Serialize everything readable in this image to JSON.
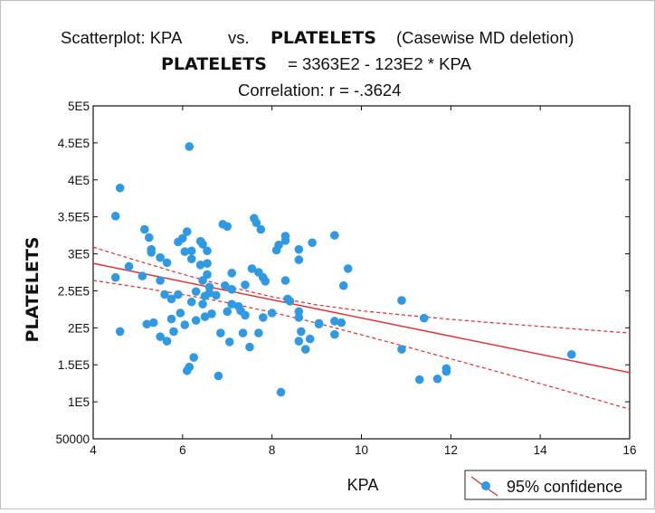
{
  "chart_data": {
    "type": "scatter",
    "title": {
      "prefix": "Scatterplot: KPA",
      "vs": "vs.",
      "yvar": "PLATELETS",
      "suffix": "(Casewise MD deletion)",
      "equation": "= 3363E2 - 123E2  * KPA",
      "correlation": "Correlation: r = -.3624"
    },
    "xlabel": "KPA",
    "ylabel": "PLATELETS",
    "xlim": [
      4,
      16
    ],
    "ylim": [
      50000,
      500000
    ],
    "xticks": [
      4,
      6,
      8,
      10,
      12,
      14,
      16
    ],
    "xtick_labels": [
      "4",
      "6",
      "8",
      "10",
      "12",
      "14",
      "16"
    ],
    "yticks": [
      50000,
      100000,
      150000,
      200000,
      250000,
      300000,
      350000,
      400000,
      450000,
      500000
    ],
    "ytick_labels": [
      "50000",
      "1E5",
      "1.5E5",
      "2E5",
      "2.5E5",
      "3E5",
      "3.5E5",
      "4E5",
      "4.5E5",
      "5E5"
    ],
    "grid": false,
    "legend": {
      "position": "bottom-right",
      "label": "95% confidence"
    },
    "regression": {
      "intercept": 336300,
      "slope": -12300
    },
    "confidence_band": {
      "x": [
        4,
        5,
        6,
        7,
        8,
        9,
        10,
        11,
        12,
        13,
        14,
        15,
        16
      ],
      "upper": [
        309000,
        290500,
        272500,
        256000,
        242000,
        231000,
        223000,
        217000,
        211500,
        206500,
        202000,
        197500,
        193000
      ],
      "lower": [
        264000,
        255000,
        245000,
        234000,
        221000,
        206500,
        190500,
        174500,
        158000,
        141500,
        124500,
        107500,
        90000
      ]
    },
    "points": [
      {
        "x": 4.5,
        "y": 351000
      },
      {
        "x": 4.6,
        "y": 389000
      },
      {
        "x": 4.5,
        "y": 268000
      },
      {
        "x": 4.6,
        "y": 195000
      },
      {
        "x": 4.8,
        "y": 283000
      },
      {
        "x": 5.1,
        "y": 270000
      },
      {
        "x": 5.15,
        "y": 333000
      },
      {
        "x": 5.25,
        "y": 322000
      },
      {
        "x": 5.3,
        "y": 306000
      },
      {
        "x": 5.3,
        "y": 302000
      },
      {
        "x": 5.2,
        "y": 205000
      },
      {
        "x": 5.35,
        "y": 207000
      },
      {
        "x": 5.5,
        "y": 295000
      },
      {
        "x": 5.5,
        "y": 264000
      },
      {
        "x": 5.5,
        "y": 188000
      },
      {
        "x": 5.65,
        "y": 288000
      },
      {
        "x": 5.6,
        "y": 245000
      },
      {
        "x": 5.65,
        "y": 182000
      },
      {
        "x": 5.75,
        "y": 239000
      },
      {
        "x": 5.75,
        "y": 212000
      },
      {
        "x": 5.8,
        "y": 195000
      },
      {
        "x": 5.9,
        "y": 316000
      },
      {
        "x": 5.9,
        "y": 245000
      },
      {
        "x": 5.95,
        "y": 220000
      },
      {
        "x": 6.0,
        "y": 321000
      },
      {
        "x": 6.05,
        "y": 303000
      },
      {
        "x": 6.1,
        "y": 330000
      },
      {
        "x": 6.05,
        "y": 204000
      },
      {
        "x": 6.1,
        "y": 142000
      },
      {
        "x": 6.15,
        "y": 147000
      },
      {
        "x": 6.15,
        "y": 445000
      },
      {
        "x": 6.2,
        "y": 304000
      },
      {
        "x": 6.2,
        "y": 293000
      },
      {
        "x": 6.2,
        "y": 235000
      },
      {
        "x": 6.25,
        "y": 160000
      },
      {
        "x": 6.3,
        "y": 249000
      },
      {
        "x": 6.3,
        "y": 210000
      },
      {
        "x": 6.4,
        "y": 317000
      },
      {
        "x": 6.4,
        "y": 285000
      },
      {
        "x": 6.45,
        "y": 313000
      },
      {
        "x": 6.45,
        "y": 264000
      },
      {
        "x": 6.45,
        "y": 232000
      },
      {
        "x": 6.5,
        "y": 243000
      },
      {
        "x": 6.5,
        "y": 215000
      },
      {
        "x": 6.55,
        "y": 304000
      },
      {
        "x": 6.55,
        "y": 287000
      },
      {
        "x": 6.55,
        "y": 272000
      },
      {
        "x": 6.6,
        "y": 255000
      },
      {
        "x": 6.6,
        "y": 247000
      },
      {
        "x": 6.65,
        "y": 219000
      },
      {
        "x": 6.75,
        "y": 244000
      },
      {
        "x": 6.8,
        "y": 135000
      },
      {
        "x": 6.85,
        "y": 193000
      },
      {
        "x": 6.9,
        "y": 340000
      },
      {
        "x": 6.95,
        "y": 257000
      },
      {
        "x": 7.0,
        "y": 337000
      },
      {
        "x": 7.0,
        "y": 222000
      },
      {
        "x": 7.05,
        "y": 181000
      },
      {
        "x": 7.1,
        "y": 274000
      },
      {
        "x": 7.1,
        "y": 252000
      },
      {
        "x": 7.1,
        "y": 232000
      },
      {
        "x": 7.25,
        "y": 229000
      },
      {
        "x": 7.3,
        "y": 223000
      },
      {
        "x": 7.35,
        "y": 193000
      },
      {
        "x": 7.4,
        "y": 258000
      },
      {
        "x": 7.4,
        "y": 217000
      },
      {
        "x": 7.5,
        "y": 174000
      },
      {
        "x": 7.55,
        "y": 280000
      },
      {
        "x": 7.6,
        "y": 348000
      },
      {
        "x": 7.65,
        "y": 342000
      },
      {
        "x": 7.7,
        "y": 275000
      },
      {
        "x": 7.75,
        "y": 333000
      },
      {
        "x": 7.7,
        "y": 193000
      },
      {
        "x": 7.8,
        "y": 268000
      },
      {
        "x": 7.85,
        "y": 263000
      },
      {
        "x": 7.8,
        "y": 214000
      },
      {
        "x": 8.0,
        "y": 220000
      },
      {
        "x": 8.1,
        "y": 305000
      },
      {
        "x": 8.15,
        "y": 312000
      },
      {
        "x": 8.2,
        "y": 113000
      },
      {
        "x": 8.3,
        "y": 324000
      },
      {
        "x": 8.3,
        "y": 318000
      },
      {
        "x": 8.3,
        "y": 264000
      },
      {
        "x": 8.35,
        "y": 239000
      },
      {
        "x": 8.4,
        "y": 236000
      },
      {
        "x": 8.6,
        "y": 306000
      },
      {
        "x": 8.6,
        "y": 292000
      },
      {
        "x": 8.6,
        "y": 222000
      },
      {
        "x": 8.6,
        "y": 214000
      },
      {
        "x": 8.65,
        "y": 195000
      },
      {
        "x": 8.6,
        "y": 182000
      },
      {
        "x": 8.75,
        "y": 171000
      },
      {
        "x": 8.85,
        "y": 185000
      },
      {
        "x": 8.9,
        "y": 315000
      },
      {
        "x": 9.05,
        "y": 206000
      },
      {
        "x": 9.05,
        "y": 205000
      },
      {
        "x": 9.4,
        "y": 325000
      },
      {
        "x": 9.4,
        "y": 209000
      },
      {
        "x": 9.4,
        "y": 191000
      },
      {
        "x": 9.55,
        "y": 207000
      },
      {
        "x": 9.6,
        "y": 257000
      },
      {
        "x": 9.7,
        "y": 280000
      },
      {
        "x": 10.9,
        "y": 237000
      },
      {
        "x": 10.9,
        "y": 171000
      },
      {
        "x": 11.3,
        "y": 130000
      },
      {
        "x": 11.4,
        "y": 213000
      },
      {
        "x": 11.7,
        "y": 131000
      },
      {
        "x": 11.9,
        "y": 145000
      },
      {
        "x": 11.9,
        "y": 141000
      },
      {
        "x": 14.7,
        "y": 164000
      }
    ]
  }
}
